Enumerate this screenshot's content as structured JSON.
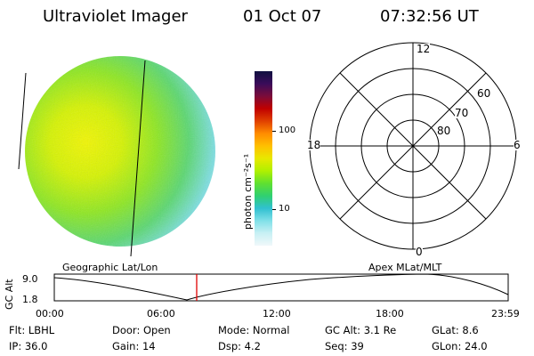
{
  "header": {
    "title": "Ultraviolet Imager",
    "date": "01 Oct 07",
    "time": "07:32:56 UT"
  },
  "colorbar": {
    "unit_label": "photon cm⁻²s⁻¹",
    "ticks": [
      "100",
      "10"
    ],
    "colors": [
      "#101040",
      "#3a0c5a",
      "#7a0c3a",
      "#c00000",
      "#e04000",
      "#ff8c00",
      "#ffc000",
      "#e8e800",
      "#b0f000",
      "#60e030",
      "#30d070",
      "#30c0d0",
      "#80e0e8",
      "#c8f0f4",
      "#f0f8fa"
    ]
  },
  "polar": {
    "mlt_labels": {
      "top": "12",
      "left": "18",
      "right": "6",
      "bottom": "0"
    },
    "lat_labels": [
      "60",
      "70",
      "80"
    ]
  },
  "timeline": {
    "left_title": "Geographic Lat/Lon",
    "right_title": "Apex MLat/MLT",
    "y_axis_label": "GC Alt",
    "y_ticks": [
      "9.0",
      "1.8"
    ],
    "x_ticks": [
      "00:00",
      "06:00",
      "12:00",
      "18:00",
      "23:59"
    ],
    "marker_time": "07:32:56"
  },
  "footer": {
    "flt": "Flt: LBHL",
    "ip": "IP: 36.0",
    "door": "Door: Open",
    "gain": "Gain: 14",
    "mode": "Mode: Normal",
    "dsp": "Dsp:     4.2",
    "gcalt": "GC Alt: 3.1 Re",
    "seq": "Seq: 39",
    "glat": "GLat:    8.6",
    "glon": "GLon:  24.0"
  }
}
